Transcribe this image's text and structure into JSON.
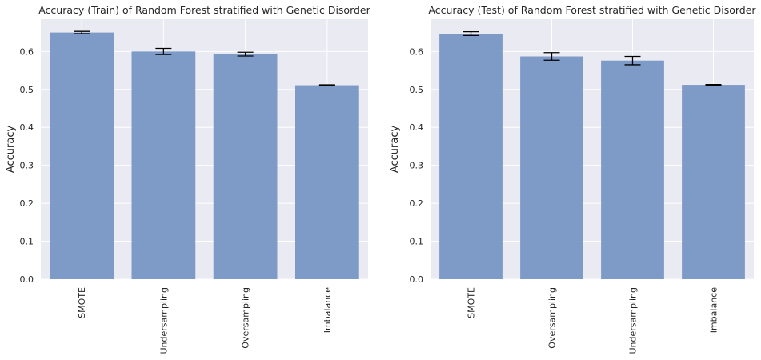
{
  "chart_data": [
    {
      "type": "bar",
      "title": "Accuracy (Train) of Random Forest stratified with Genetic Disorder",
      "xlabel": "",
      "ylabel": "Accuracy",
      "categories": [
        "SMOTE",
        "Undersampling",
        "Oversampling",
        "Imbalance"
      ],
      "values": [
        0.65,
        0.6,
        0.593,
        0.511
      ],
      "errors": [
        0.003,
        0.008,
        0.005,
        0.001
      ],
      "ylim": [
        0,
        0.685
      ],
      "yticks": [
        "0.0",
        "0.1",
        "0.2",
        "0.3",
        "0.4",
        "0.5",
        "0.6"
      ],
      "grid": true,
      "bar_color": "#7896c4",
      "background_color": "#eaeaf2",
      "errorbar_color": "#000000"
    },
    {
      "type": "bar",
      "title": "Accuracy (Test) of Random Forest stratified with Genetic Disorder",
      "xlabel": "",
      "ylabel": "Accuracy",
      "categories": [
        "SMOTE",
        "Oversampling",
        "Undersampling",
        "Imbalance"
      ],
      "values": [
        0.647,
        0.587,
        0.576,
        0.512
      ],
      "errors": [
        0.005,
        0.01,
        0.011,
        0.001
      ],
      "ylim": [
        0,
        0.685
      ],
      "yticks": [
        "0.0",
        "0.1",
        "0.2",
        "0.3",
        "0.4",
        "0.5",
        "0.6"
      ],
      "grid": true,
      "bar_color": "#7896c4",
      "background_color": "#eaeaf2",
      "errorbar_color": "#000000"
    }
  ]
}
